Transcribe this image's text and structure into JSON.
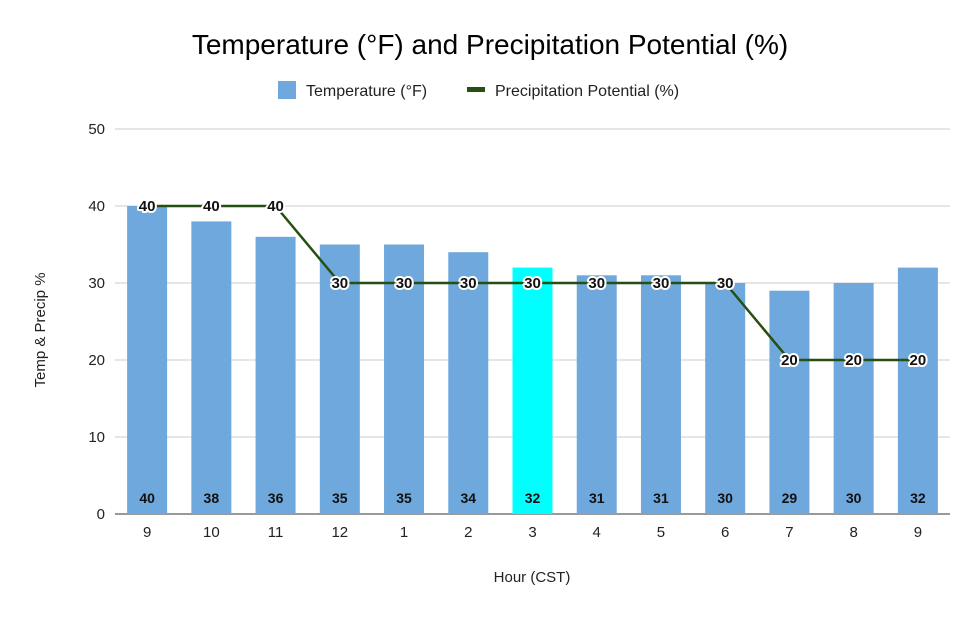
{
  "chart_data": {
    "type": "bar",
    "title": "Temperature (°F) and Precipitation Potential (%)",
    "xlabel": "Hour (CST)",
    "ylabel": "Temp  & Precip %",
    "ylim": [
      0,
      50
    ],
    "yticks": [
      0,
      10,
      20,
      30,
      40,
      50
    ],
    "grid": true,
    "legend_position": "top",
    "categories": [
      "9",
      "10",
      "11",
      "12",
      "1",
      "2",
      "3",
      "4",
      "5",
      "6",
      "7",
      "8",
      "9"
    ],
    "series": [
      {
        "name": "Temperature (°F)",
        "type": "bar",
        "color": "#6fa8dc",
        "highlight_color": "#00ffff",
        "highlight_index": 6,
        "values": [
          40,
          38,
          36,
          35,
          35,
          34,
          32,
          31,
          31,
          30,
          29,
          30,
          32
        ]
      },
      {
        "name": "Precipitation Potential (%)",
        "type": "line",
        "color": "#274e13",
        "values": [
          40,
          40,
          40,
          30,
          30,
          30,
          30,
          30,
          30,
          30,
          20,
          20,
          20
        ]
      }
    ]
  }
}
